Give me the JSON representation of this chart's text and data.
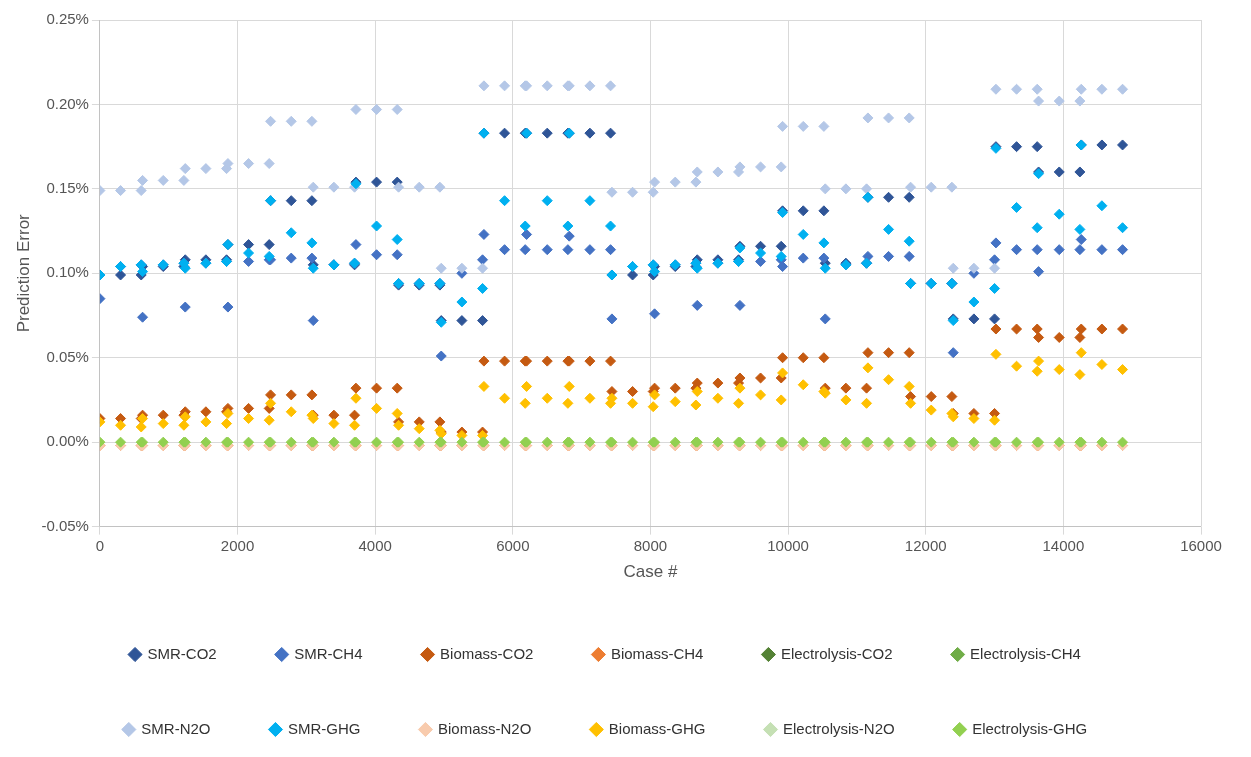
{
  "chart_data": {
    "type": "scatter",
    "xlabel": "Case #",
    "ylabel": "Prediction Error",
    "xlim": [
      0,
      16000
    ],
    "xticks": [
      0,
      2000,
      4000,
      6000,
      8000,
      10000,
      12000,
      14000,
      16000
    ],
    "ylim": [
      -0.05,
      0.25
    ],
    "yticks": [
      {
        "value": -0.05,
        "label": "-0.05%"
      },
      {
        "value": 0,
        "label": "0.00%"
      },
      {
        "value": 0.05,
        "label": "0.05%"
      },
      {
        "value": 0.1,
        "label": "0.10%"
      },
      {
        "value": 0.15,
        "label": "0.15%"
      },
      {
        "value": 0.2,
        "label": "0.20%"
      },
      {
        "value": 0.25,
        "label": "0.25%"
      }
    ],
    "grid": true,
    "legend": "bottom",
    "marker": "diamond",
    "x": [
      0,
      300,
      600,
      620,
      920,
      1220,
      1240,
      1540,
      1840,
      1860,
      2160,
      2460,
      2480,
      2780,
      3080,
      3100,
      3400,
      3700,
      3720,
      4020,
      4320,
      4340,
      4640,
      4940,
      4960,
      5260,
      5560,
      5580,
      5880,
      6180,
      6200,
      6500,
      6800,
      6820,
      7120,
      7420,
      7440,
      7740,
      8040,
      8060,
      8360,
      8660,
      8680,
      8980,
      9280,
      9300,
      9600,
      9900,
      9920,
      10220,
      10520,
      10540,
      10840,
      11140,
      11160,
      11460,
      11760,
      11780,
      12080,
      12380,
      12400,
      12700,
      13000,
      13020,
      13320,
      13620,
      13640,
      13940,
      14240,
      14260,
      14560,
      14860
    ],
    "series": [
      {
        "name": "SMR-CO2",
        "color": "#2f5597",
        "values": [
          0.099,
          0.099,
          0.099,
          0.104,
          0.104,
          0.104,
          0.108,
          0.108,
          0.108,
          0.117,
          0.117,
          0.117,
          0.143,
          0.143,
          0.143,
          0.105,
          0.105,
          0.105,
          0.154,
          0.154,
          0.154,
          0.093,
          0.093,
          0.093,
          0.072,
          0.072,
          0.072,
          0.183,
          0.183,
          0.183,
          0.183,
          0.183,
          0.183,
          0.183,
          0.183,
          0.183,
          0.099,
          0.099,
          0.099,
          0.104,
          0.104,
          0.104,
          0.108,
          0.108,
          0.108,
          0.116,
          0.116,
          0.116,
          0.137,
          0.137,
          0.137,
          0.106,
          0.106,
          0.106,
          0.145,
          0.145,
          0.145,
          0.094,
          0.094,
          0.094,
          0.073,
          0.073,
          0.073,
          0.175,
          0.175,
          0.175,
          0.16,
          0.16,
          0.16,
          0.176,
          0.176,
          0.176
        ]
      },
      {
        "name": "SMR-CH4",
        "color": "#4472c4",
        "values": [
          0.085,
          0.104,
          0.105,
          0.074,
          0.105,
          0.106,
          0.08,
          0.106,
          0.107,
          0.08,
          0.107,
          0.108,
          0.108,
          0.109,
          0.109,
          0.072,
          0.105,
          0.106,
          0.117,
          0.111,
          0.111,
          0.094,
          0.094,
          0.094,
          0.051,
          0.1,
          0.108,
          0.123,
          0.114,
          0.114,
          0.123,
          0.114,
          0.114,
          0.122,
          0.114,
          0.114,
          0.073,
          0.104,
          0.105,
          0.076,
          0.105,
          0.106,
          0.081,
          0.106,
          0.107,
          0.081,
          0.107,
          0.108,
          0.104,
          0.109,
          0.109,
          0.073,
          0.105,
          0.106,
          0.11,
          0.11,
          0.11,
          0.094,
          0.094,
          0.094,
          0.053,
          0.1,
          0.108,
          0.118,
          0.114,
          0.114,
          0.101,
          0.114,
          0.114,
          0.12,
          0.114,
          0.114
        ]
      },
      {
        "name": "Biomass-CO2",
        "color": "#c55a11",
        "values": [
          0.014,
          0.014,
          0.014,
          0.016,
          0.016,
          0.016,
          0.018,
          0.018,
          0.018,
          0.02,
          0.02,
          0.02,
          0.028,
          0.028,
          0.028,
          0.016,
          0.016,
          0.016,
          0.032,
          0.032,
          0.032,
          0.012,
          0.012,
          0.012,
          0.006,
          0.006,
          0.006,
          0.048,
          0.048,
          0.048,
          0.048,
          0.048,
          0.048,
          0.048,
          0.048,
          0.048,
          0.03,
          0.03,
          0.03,
          0.032,
          0.032,
          0.032,
          0.035,
          0.035,
          0.035,
          0.038,
          0.038,
          0.038,
          0.05,
          0.05,
          0.05,
          0.032,
          0.032,
          0.032,
          0.053,
          0.053,
          0.053,
          0.027,
          0.027,
          0.027,
          0.017,
          0.017,
          0.017,
          0.067,
          0.067,
          0.067,
          0.062,
          0.062,
          0.062,
          0.067,
          0.067,
          0.067
        ]
      },
      {
        "name": "Biomass-CH4",
        "color": "#ed7d31",
        "values": [
          -0.002,
          -0.002,
          -0.002,
          -0.002,
          -0.002,
          -0.002,
          -0.002,
          -0.002,
          null,
          -0.002,
          -0.002,
          -0.002,
          -0.002,
          -0.002,
          -0.002,
          -0.002,
          -0.002,
          null,
          -0.002,
          -0.002,
          -0.002,
          -0.002,
          -0.002,
          -0.002,
          -0.002,
          -0.002,
          null,
          -0.002,
          -0.002,
          -0.002,
          -0.002,
          -0.002,
          -0.002,
          -0.002,
          -0.002,
          null,
          -0.002,
          -0.002,
          -0.002,
          -0.002,
          -0.002,
          -0.002,
          -0.002,
          -0.002,
          null,
          -0.002,
          -0.002,
          -0.002,
          -0.002,
          -0.002,
          -0.002,
          -0.002,
          -0.002,
          null,
          -0.002,
          -0.002,
          -0.002,
          -0.002,
          -0.002,
          -0.002,
          -0.002,
          -0.002,
          null,
          -0.002,
          -0.002,
          -0.002,
          -0.002,
          -0.002,
          -0.002,
          -0.002,
          -0.002,
          -0.002
        ]
      },
      {
        "name": "Electrolysis-CO2",
        "color": "#548235",
        "values": [
          null,
          null,
          null,
          null,
          null,
          null,
          null,
          null,
          null,
          null,
          null,
          null,
          null,
          null,
          null,
          null,
          null,
          null,
          null,
          null,
          null,
          null,
          null,
          null,
          null,
          null,
          null,
          null,
          null,
          null,
          null,
          null,
          null,
          null,
          null,
          null,
          null,
          null,
          null,
          null,
          null,
          null,
          null,
          null,
          null,
          null,
          null,
          null,
          null,
          null,
          null,
          null,
          null,
          null,
          null,
          null,
          null,
          null,
          null,
          null,
          null,
          null,
          null,
          null,
          null,
          null,
          null,
          null,
          null,
          null,
          null,
          null
        ]
      },
      {
        "name": "Electrolysis-CH4",
        "color": "#70ad47",
        "values": [
          null,
          null,
          null,
          null,
          null,
          null,
          null,
          null,
          null,
          null,
          null,
          null,
          null,
          null,
          null,
          null,
          null,
          null,
          null,
          null,
          null,
          null,
          null,
          null,
          null,
          null,
          null,
          null,
          null,
          null,
          null,
          null,
          null,
          null,
          null,
          null,
          null,
          null,
          null,
          null,
          null,
          null,
          null,
          null,
          null,
          null,
          null,
          null,
          null,
          null,
          null,
          null,
          null,
          null,
          null,
          null,
          null,
          null,
          null,
          null,
          null,
          null,
          null,
          null,
          null,
          null,
          null,
          null,
          null,
          null,
          null,
          null
        ]
      },
      {
        "name": "SMR-N2O",
        "color": "#b4c7e7",
        "values": [
          0.149,
          0.149,
          0.149,
          0.155,
          0.155,
          0.155,
          0.162,
          0.162,
          0.162,
          0.165,
          0.165,
          0.165,
          0.19,
          0.19,
          0.19,
          0.151,
          0.151,
          0.151,
          0.197,
          0.197,
          0.197,
          0.151,
          0.151,
          0.151,
          0.103,
          0.103,
          0.103,
          0.211,
          0.211,
          0.211,
          0.211,
          0.211,
          0.211,
          0.211,
          0.211,
          0.211,
          0.148,
          0.148,
          0.148,
          0.154,
          0.154,
          0.154,
          0.16,
          0.16,
          0.16,
          0.163,
          0.163,
          0.163,
          0.187,
          0.187,
          0.187,
          0.15,
          0.15,
          0.15,
          0.192,
          0.192,
          0.192,
          0.151,
          0.151,
          0.151,
          0.103,
          0.103,
          0.103,
          0.209,
          0.209,
          0.209,
          0.202,
          0.202,
          0.202,
          0.209,
          0.209,
          0.209
        ]
      },
      {
        "name": "SMR-GHG",
        "color": "#00b0f0",
        "values": [
          0.099,
          0.104,
          0.105,
          0.101,
          0.105,
          0.106,
          0.103,
          0.106,
          0.107,
          0.117,
          0.112,
          0.11,
          0.143,
          0.124,
          0.118,
          0.103,
          0.105,
          0.106,
          0.153,
          0.128,
          0.12,
          0.094,
          0.094,
          0.094,
          0.071,
          0.083,
          0.091,
          0.183,
          0.143,
          0.128,
          0.183,
          0.143,
          0.128,
          0.183,
          0.143,
          0.128,
          0.099,
          0.104,
          0.105,
          0.101,
          0.105,
          0.106,
          0.103,
          0.106,
          0.107,
          0.115,
          0.112,
          0.11,
          0.136,
          0.123,
          0.118,
          0.103,
          0.105,
          0.106,
          0.145,
          0.126,
          0.119,
          0.094,
          0.094,
          0.094,
          0.072,
          0.083,
          0.091,
          0.174,
          0.139,
          0.127,
          0.159,
          0.135,
          0.126,
          0.176,
          0.14,
          0.127
        ]
      },
      {
        "name": "Biomass-N2O",
        "color": "#f8cbad",
        "values": [
          -0.002,
          -0.002,
          -0.002,
          -0.002,
          -0.002,
          -0.002,
          -0.002,
          -0.002,
          -0.002,
          -0.002,
          -0.002,
          -0.002,
          -0.002,
          -0.002,
          -0.002,
          -0.002,
          -0.002,
          -0.002,
          -0.002,
          -0.002,
          -0.002,
          -0.002,
          -0.002,
          -0.002,
          -0.002,
          -0.002,
          -0.002,
          -0.002,
          -0.002,
          -0.002,
          -0.002,
          -0.002,
          -0.002,
          -0.002,
          -0.002,
          -0.002,
          -0.002,
          -0.002,
          -0.002,
          -0.002,
          -0.002,
          -0.002,
          -0.002,
          -0.002,
          -0.002,
          -0.002,
          -0.002,
          -0.002,
          -0.002,
          -0.002,
          -0.002,
          -0.002,
          -0.002,
          -0.002,
          -0.002,
          -0.002,
          -0.002,
          -0.002,
          -0.002,
          -0.002,
          -0.002,
          -0.002,
          -0.002,
          -0.002,
          -0.002,
          -0.002,
          -0.002,
          -0.002,
          -0.002,
          -0.002,
          -0.002,
          -0.002
        ]
      },
      {
        "name": "Biomass-GHG",
        "color": "#ffc000",
        "values": [
          0.012,
          0.01,
          0.009,
          0.014,
          0.011,
          0.01,
          0.015,
          0.012,
          0.011,
          0.017,
          0.014,
          0.013,
          0.023,
          0.018,
          0.016,
          0.014,
          0.011,
          0.01,
          0.026,
          0.02,
          0.017,
          0.01,
          0.008,
          0.007,
          0.005,
          0.004,
          0.004,
          0.033,
          0.026,
          0.023,
          0.033,
          0.026,
          0.023,
          0.033,
          0.026,
          0.023,
          0.026,
          0.023,
          0.021,
          0.028,
          0.024,
          0.022,
          0.03,
          0.026,
          0.023,
          0.032,
          0.028,
          0.025,
          0.041,
          0.034,
          0.03,
          0.029,
          0.025,
          0.023,
          0.044,
          0.037,
          0.033,
          0.023,
          0.019,
          0.017,
          0.015,
          0.014,
          0.013,
          0.052,
          0.045,
          0.042,
          0.048,
          0.043,
          0.04,
          0.053,
          0.046,
          0.043
        ]
      },
      {
        "name": "Electrolysis-N2O",
        "color": "#c5e0b4",
        "values": [
          null,
          null,
          null,
          null,
          null,
          null,
          null,
          null,
          null,
          null,
          null,
          null,
          null,
          null,
          null,
          null,
          null,
          null,
          null,
          null,
          null,
          null,
          null,
          null,
          null,
          null,
          null,
          null,
          null,
          null,
          null,
          null,
          null,
          null,
          null,
          null,
          null,
          null,
          null,
          null,
          null,
          null,
          null,
          null,
          null,
          null,
          null,
          null,
          null,
          null,
          null,
          null,
          null,
          null,
          null,
          null,
          null,
          null,
          null,
          null,
          null,
          null,
          null,
          null,
          null,
          null,
          null,
          null,
          null,
          null,
          null,
          null
        ]
      },
      {
        "name": "Electrolysis-GHG",
        "color": "#92d050",
        "values": [
          0,
          0,
          0,
          0,
          0,
          0,
          0,
          0,
          0,
          0,
          0,
          0,
          0,
          0,
          0,
          0,
          0,
          0,
          0,
          0,
          0,
          0,
          0,
          0,
          0,
          0,
          0,
          0,
          0,
          0,
          0,
          0,
          0,
          0,
          0,
          0,
          0,
          0,
          0,
          0,
          0,
          0,
          0,
          0,
          0,
          0,
          0,
          0,
          0,
          0,
          0,
          0,
          0,
          0,
          0,
          0,
          0,
          0,
          0,
          0,
          0,
          0,
          0,
          0,
          0,
          0,
          0,
          0,
          0,
          0,
          0,
          0
        ]
      }
    ]
  }
}
